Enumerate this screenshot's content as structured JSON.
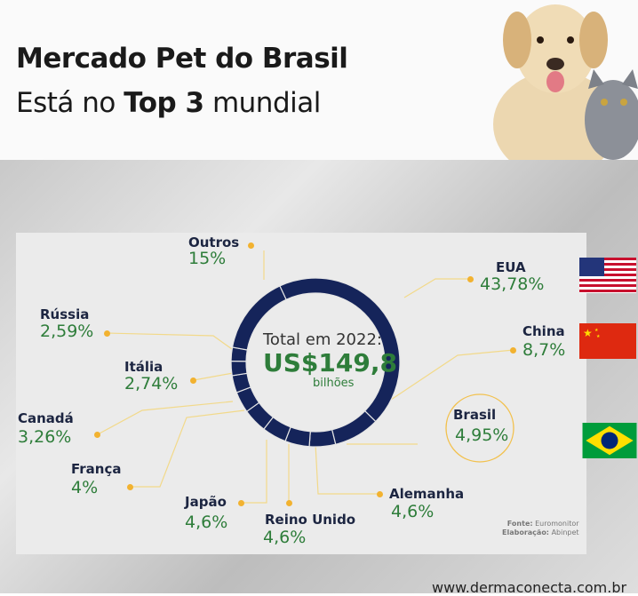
{
  "header": {
    "title": "Mercado Pet do Brasil",
    "subtitle_pre": "Está no ",
    "subtitle_bold": "Top 3",
    "subtitle_post": " mundial"
  },
  "chart_data": {
    "type": "pie",
    "title": "",
    "center": {
      "line1": "Total em 2022:",
      "value": "US$149,8",
      "unit": "bilhões"
    },
    "categories": [
      "EUA",
      "China",
      "Brasil",
      "Alemanha",
      "Reino Unido",
      "Japão",
      "França",
      "Canadá",
      "Itália",
      "Rússia",
      "Outros"
    ],
    "labels": [
      "43,78%",
      "8,7%",
      "4,95%",
      "4,6%",
      "4,6%",
      "4,6%",
      "4%",
      "3,26%",
      "2,74%",
      "2,59%",
      "15%"
    ],
    "values": [
      43.78,
      8.7,
      4.95,
      4.6,
      4.6,
      4.6,
      4,
      3.26,
      2.74,
      2.59,
      15
    ],
    "color": "#15245a"
  },
  "source": {
    "fonte_label": "Fonte:",
    "fonte": "Euromonitor",
    "elab_label": "Elaboração:",
    "elab": "Abinpet"
  },
  "footer": {
    "url": "www.dermaconecta.com.br"
  }
}
